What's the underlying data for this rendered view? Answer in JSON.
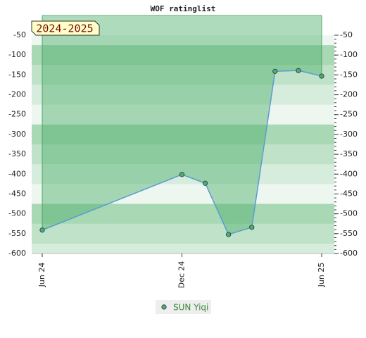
{
  "chart_data": {
    "type": "line",
    "title": "WOF ratinglist",
    "annotation": "2024-2025",
    "x": [
      0,
      6,
      7,
      8,
      9,
      10,
      11,
      12
    ],
    "xlim": [
      0,
      12
    ],
    "xticks": [
      {
        "value": 0,
        "label": "Jun 24"
      },
      {
        "value": 6,
        "label": "Dec 24"
      },
      {
        "value": 12,
        "label": "Jun 25"
      }
    ],
    "series": [
      {
        "name": "SUN Yiqi",
        "color": "#5b9bd5",
        "marker_color": "#4caf6a",
        "values": [
          -541,
          -401,
          -423,
          -552,
          -534,
          -141,
          -139,
          -153
        ]
      }
    ],
    "ylim": [
      -600,
      -50
    ],
    "yticks": [
      -50,
      -100,
      -150,
      -200,
      -250,
      -300,
      -350,
      -400,
      -450,
      -500,
      -550,
      -600
    ]
  }
}
